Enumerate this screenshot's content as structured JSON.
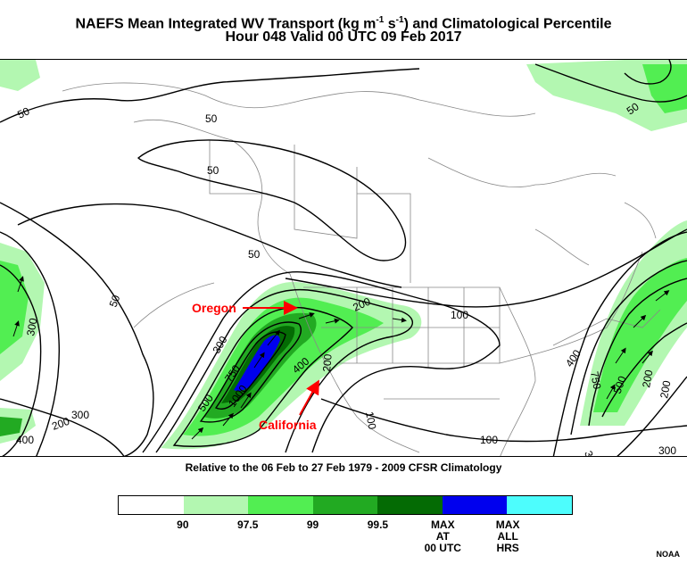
{
  "header": {
    "title_prefix": "NAEFS Mean Integrated WV Transport (kg m",
    "title_sup1": "-1",
    "title_mid": " s",
    "title_sup2": "-1",
    "title_suffix": ") and Climatological Percentile",
    "valid_line": "Hour 048 Valid 00 UTC 09 Feb 2017"
  },
  "map": {
    "contour_labels": [
      "50",
      "50",
      "50",
      "50",
      "50",
      "100",
      "100",
      "100",
      "200",
      "200",
      "200",
      "200",
      "300",
      "300",
      "300",
      "300",
      "300",
      "400",
      "400",
      "400",
      "500",
      "500",
      "750",
      "750",
      "1000",
      "200",
      "50"
    ],
    "annotations": {
      "oregon": "Oregon",
      "california": "California"
    },
    "colors": {
      "p90": "#b3f7b1",
      "p97_5": "#52ee52",
      "p99": "#22aa22",
      "p99_5": "#046b04",
      "max_00utc": "#0000ee",
      "max_all": "#4dfdfd",
      "annotation": "#ff0000"
    }
  },
  "subtitle": "Relative to the 06 Feb to 27 Feb 1979 - 2009 CFSR Climatology",
  "colorbar": {
    "colors": [
      "#ffffff",
      "#b3f7b1",
      "#52ee52",
      "#22aa22",
      "#046b04",
      "#0000ee",
      "#4dfdfd"
    ],
    "labels": [
      {
        "text": "90",
        "lines": [
          "90"
        ]
      },
      {
        "text": "97.5",
        "lines": [
          "97.5"
        ]
      },
      {
        "text": "99",
        "lines": [
          "99"
        ]
      },
      {
        "text": "99.5",
        "lines": [
          "99.5"
        ]
      },
      {
        "text": "MAX AT 00 UTC",
        "lines": [
          "MAX",
          "AT",
          "00 UTC"
        ]
      },
      {
        "text": "MAX ALL HRS",
        "lines": [
          "MAX",
          "ALL",
          "HRS"
        ]
      }
    ]
  },
  "credit": "NOAA"
}
